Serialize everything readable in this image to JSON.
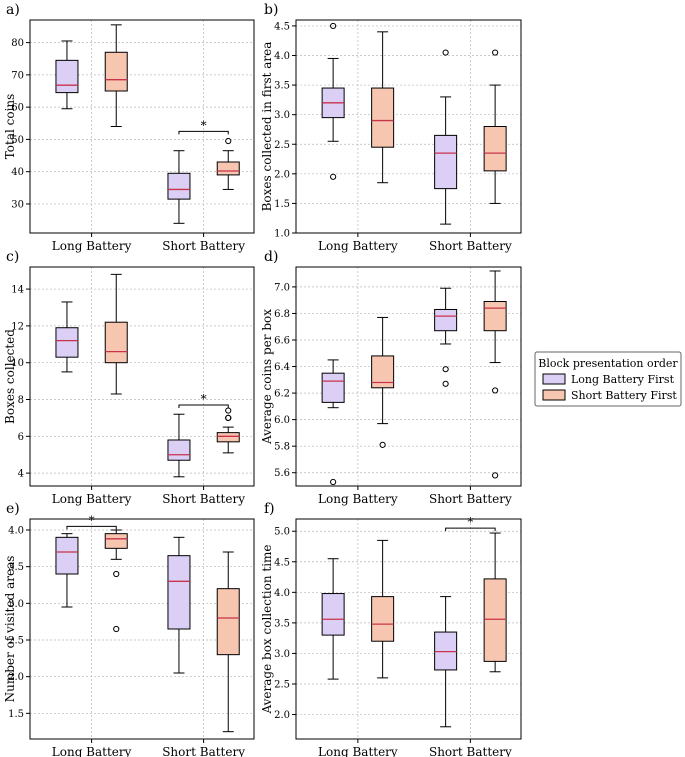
{
  "colors": {
    "long_battery_first": "#dccff5",
    "short_battery_first": "#f6c6b0",
    "median": "#c8324b"
  },
  "legend": {
    "title": "Block presentation order",
    "entries": [
      {
        "label": "Long Battery First",
        "group": "long_battery_first"
      },
      {
        "label": "Short Battery First",
        "group": "short_battery_first"
      }
    ]
  },
  "chart_data": [
    {
      "panel": "a)",
      "type": "box",
      "ylabel": "Total coins",
      "categories": [
        "Long Battery",
        "Short Battery"
      ],
      "ylim": [
        21,
        87
      ],
      "yticks": [
        30,
        40,
        50,
        60,
        70,
        80
      ],
      "series": [
        {
          "name": "Long Battery First",
          "group": "long_battery_first",
          "boxes": [
            {
              "category": "Long Battery",
              "whislo": 59.5,
              "q1": 64.5,
              "med": 66.8,
              "q3": 74.5,
              "whishi": 80.5,
              "fliers": []
            },
            {
              "category": "Short Battery",
              "whislo": 24,
              "q1": 31.5,
              "med": 34.5,
              "q3": 39.5,
              "whishi": 46.5,
              "fliers": []
            }
          ]
        },
        {
          "name": "Short Battery First",
          "group": "short_battery_first",
          "boxes": [
            {
              "category": "Long Battery",
              "whislo": 54,
              "q1": 65,
              "med": 68.5,
              "q3": 77,
              "whishi": 85.5,
              "fliers": []
            },
            {
              "category": "Short Battery",
              "whislo": 34.5,
              "q1": 39,
              "med": 40.2,
              "q3": 43,
              "whishi": 46.5,
              "fliers": [
                49.5
              ]
            }
          ]
        }
      ],
      "significance": [
        {
          "category": "Short Battery",
          "label": "*",
          "y": 52.5
        }
      ]
    },
    {
      "panel": "b)",
      "type": "box",
      "ylabel": "Boxes collected in first area",
      "categories": [
        "Long Battery",
        "Short Battery"
      ],
      "ylim": [
        1.0,
        4.6
      ],
      "yticks": [
        1.0,
        1.5,
        2.0,
        2.5,
        3.0,
        3.5,
        4.0,
        4.5
      ],
      "series": [
        {
          "name": "Long Battery First",
          "group": "long_battery_first",
          "boxes": [
            {
              "category": "Long Battery",
              "whislo": 2.55,
              "q1": 2.95,
              "med": 3.2,
              "q3": 3.45,
              "whishi": 3.95,
              "fliers": [
                4.5,
                1.95
              ]
            },
            {
              "category": "Short Battery",
              "whislo": 1.15,
              "q1": 1.75,
              "med": 2.35,
              "q3": 2.65,
              "whishi": 3.3,
              "fliers": [
                4.05
              ]
            }
          ]
        },
        {
          "name": "Short Battery First",
          "group": "short_battery_first",
          "boxes": [
            {
              "category": "Long Battery",
              "whislo": 1.85,
              "q1": 2.45,
              "med": 2.9,
              "q3": 3.45,
              "whishi": 4.4,
              "fliers": []
            },
            {
              "category": "Short Battery",
              "whislo": 1.5,
              "q1": 2.05,
              "med": 2.35,
              "q3": 2.8,
              "whishi": 3.5,
              "fliers": [
                4.05
              ]
            }
          ]
        }
      ],
      "significance": []
    },
    {
      "panel": "c)",
      "type": "box",
      "ylabel": "Boxes collected",
      "categories": [
        "Long Battery",
        "Short Battery"
      ],
      "ylim": [
        3.3,
        15.2
      ],
      "yticks": [
        4,
        6,
        8,
        10,
        12,
        14
      ],
      "series": [
        {
          "name": "Long Battery First",
          "group": "long_battery_first",
          "boxes": [
            {
              "category": "Long Battery",
              "whislo": 9.5,
              "q1": 10.3,
              "med": 11.2,
              "q3": 11.9,
              "whishi": 13.3,
              "fliers": []
            },
            {
              "category": "Short Battery",
              "whislo": 3.8,
              "q1": 4.7,
              "med": 5.0,
              "q3": 5.8,
              "whishi": 7.2,
              "fliers": []
            }
          ]
        },
        {
          "name": "Short Battery First",
          "group": "short_battery_first",
          "boxes": [
            {
              "category": "Long Battery",
              "whislo": 8.3,
              "q1": 10.0,
              "med": 10.6,
              "q3": 12.2,
              "whishi": 14.8,
              "fliers": []
            },
            {
              "category": "Short Battery",
              "whislo": 5.1,
              "q1": 5.7,
              "med": 6.0,
              "q3": 6.2,
              "whishi": 6.5,
              "fliers": [
                7.0,
                7.0,
                7.4
              ]
            }
          ]
        }
      ],
      "significance": [
        {
          "category": "Short Battery",
          "label": "*",
          "y": 7.7
        }
      ]
    },
    {
      "panel": "d)",
      "type": "box",
      "ylabel": "Average coins per box",
      "categories": [
        "Long Battery",
        "Short Battery"
      ],
      "ylim": [
        5.5,
        7.15
      ],
      "yticks": [
        5.6,
        5.8,
        6.0,
        6.2,
        6.4,
        6.6,
        6.8,
        7.0
      ],
      "series": [
        {
          "name": "Long Battery First",
          "group": "long_battery_first",
          "boxes": [
            {
              "category": "Long Battery",
              "whislo": 6.09,
              "q1": 6.13,
              "med": 6.29,
              "q3": 6.35,
              "whishi": 6.45,
              "fliers": [
                5.53
              ]
            },
            {
              "category": "Short Battery",
              "whislo": 6.57,
              "q1": 6.67,
              "med": 6.78,
              "q3": 6.83,
              "whishi": 6.99,
              "fliers": [
                6.38,
                6.27
              ]
            }
          ]
        },
        {
          "name": "Short Battery First",
          "group": "short_battery_first",
          "boxes": [
            {
              "category": "Long Battery",
              "whislo": 5.97,
              "q1": 6.24,
              "med": 6.28,
              "q3": 6.48,
              "whishi": 6.77,
              "fliers": [
                5.81
              ]
            },
            {
              "category": "Short Battery",
              "whislo": 6.43,
              "q1": 6.67,
              "med": 6.84,
              "q3": 6.89,
              "whishi": 7.12,
              "fliers": [
                6.22,
                5.58
              ]
            }
          ]
        }
      ],
      "significance": []
    },
    {
      "panel": "e)",
      "type": "box",
      "ylabel": "Number of visited areas",
      "categories": [
        "Long Battery",
        "Short Battery"
      ],
      "ylim": [
        1.15,
        4.15
      ],
      "yticks": [
        1.5,
        2.0,
        2.5,
        3.0,
        3.5,
        4.0
      ],
      "series": [
        {
          "name": "Long Battery First",
          "group": "long_battery_first",
          "boxes": [
            {
              "category": "Long Battery",
              "whislo": 2.95,
              "q1": 3.4,
              "med": 3.7,
              "q3": 3.9,
              "whishi": 3.95,
              "fliers": []
            },
            {
              "category": "Short Battery",
              "whislo": 2.05,
              "q1": 2.65,
              "med": 3.3,
              "q3": 3.65,
              "whishi": 3.9,
              "fliers": []
            }
          ]
        },
        {
          "name": "Short Battery First",
          "group": "short_battery_first",
          "boxes": [
            {
              "category": "Long Battery",
              "whislo": 3.6,
              "q1": 3.75,
              "med": 3.88,
              "q3": 3.95,
              "whishi": 4.0,
              "fliers": [
                3.4,
                2.65
              ]
            },
            {
              "category": "Short Battery",
              "whislo": 1.25,
              "q1": 2.3,
              "med": 2.8,
              "q3": 3.2,
              "whishi": 3.7,
              "fliers": []
            }
          ]
        }
      ],
      "significance": [
        {
          "category": "Long Battery",
          "label": "*",
          "y": 4.05
        }
      ]
    },
    {
      "panel": "f)",
      "type": "box",
      "ylabel": "Average box collection time",
      "categories": [
        "Long Battery",
        "Short Battery"
      ],
      "ylim": [
        1.6,
        5.2
      ],
      "yticks": [
        2.0,
        2.5,
        3.0,
        3.5,
        4.0,
        4.5,
        5.0
      ],
      "series": [
        {
          "name": "Long Battery First",
          "group": "long_battery_first",
          "boxes": [
            {
              "category": "Long Battery",
              "whislo": 2.58,
              "q1": 3.3,
              "med": 3.56,
              "q3": 3.98,
              "whishi": 4.55,
              "fliers": []
            },
            {
              "category": "Short Battery",
              "whislo": 1.8,
              "q1": 2.73,
              "med": 3.03,
              "q3": 3.35,
              "whishi": 3.93,
              "fliers": []
            }
          ]
        },
        {
          "name": "Short Battery First",
          "group": "short_battery_first",
          "boxes": [
            {
              "category": "Long Battery",
              "whislo": 2.6,
              "q1": 3.2,
              "med": 3.48,
              "q3": 3.93,
              "whishi": 4.85,
              "fliers": []
            },
            {
              "category": "Short Battery",
              "whislo": 2.7,
              "q1": 2.87,
              "med": 3.56,
              "q3": 4.22,
              "whishi": 4.97,
              "fliers": []
            }
          ]
        }
      ],
      "significance": [
        {
          "category": "Short Battery",
          "label": "*",
          "y": 5.05
        }
      ]
    }
  ]
}
